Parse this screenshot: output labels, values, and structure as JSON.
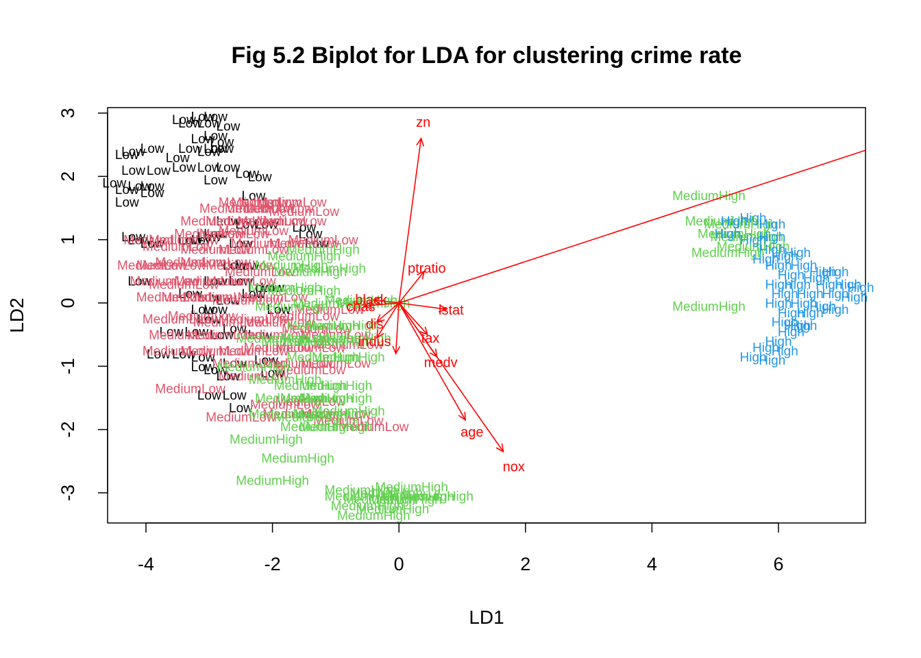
{
  "chart_data": {
    "type": "scatter",
    "title": "Fig 5.2 Biplot for LDA for clustering crime rate",
    "xlabel": "LD1",
    "ylabel": "LD2",
    "xlim": [
      -4.6,
      7.4
    ],
    "ylim": [
      -3.5,
      3.1
    ],
    "xticks": [
      -4,
      -2,
      0,
      2,
      4,
      6
    ],
    "yticks": [
      -3,
      -2,
      -1,
      0,
      1,
      2,
      3
    ],
    "grid": false,
    "legend": "none",
    "colors": {
      "Low": "#000000",
      "MediumLow": "#DF536B",
      "MediumHigh": "#61D04F",
      "High": "#2297E6",
      "arrows": "#FF0000"
    },
    "series": [
      {
        "name": "Low",
        "points": [
          [
            -3.4,
            2.9
          ],
          [
            -3.1,
            2.95
          ],
          [
            -2.9,
            2.95
          ],
          [
            -3.3,
            2.85
          ],
          [
            -3.0,
            2.85
          ],
          [
            -2.7,
            2.8
          ],
          [
            -3.1,
            2.6
          ],
          [
            -2.9,
            2.65
          ],
          [
            -2.8,
            2.55
          ],
          [
            -2.9,
            2.45
          ],
          [
            -3.3,
            2.45
          ],
          [
            -3.0,
            2.4
          ],
          [
            -2.8,
            2.45
          ],
          [
            -4.2,
            2.4
          ],
          [
            -3.9,
            2.45
          ],
          [
            -4.3,
            2.35
          ],
          [
            -3.5,
            2.3
          ],
          [
            -4.2,
            2.1
          ],
          [
            -3.8,
            2.1
          ],
          [
            -3.4,
            2.15
          ],
          [
            -3.0,
            2.15
          ],
          [
            -2.7,
            2.15
          ],
          [
            -2.4,
            2.05
          ],
          [
            -2.2,
            2.0
          ],
          [
            -2.9,
            1.95
          ],
          [
            -4.5,
            1.9
          ],
          [
            -4.1,
            1.85
          ],
          [
            -3.9,
            1.85
          ],
          [
            -4.3,
            1.8
          ],
          [
            -3.9,
            1.75
          ],
          [
            -2.3,
            1.7
          ],
          [
            -4.3,
            1.6
          ],
          [
            -2.7,
            1.3
          ],
          [
            -2.4,
            1.25
          ],
          [
            -2.1,
            1.25
          ],
          [
            -1.5,
            1.2
          ],
          [
            -1.4,
            1.1
          ],
          [
            -4.2,
            1.05
          ],
          [
            -4.1,
            1.0
          ],
          [
            -3.9,
            0.95
          ],
          [
            -3.3,
            1.0
          ],
          [
            -3.1,
            1.0
          ],
          [
            -3.0,
            1.05
          ],
          [
            -2.9,
            1.1
          ],
          [
            -2.5,
            0.95
          ],
          [
            -1.3,
            0.95
          ],
          [
            -2.6,
            0.6
          ],
          [
            -2.4,
            0.6
          ],
          [
            -4.1,
            0.35
          ],
          [
            -2.9,
            0.35
          ],
          [
            -2.5,
            0.35
          ],
          [
            -2.2,
            0.25
          ],
          [
            -2.0,
            0.25
          ],
          [
            -2.3,
            0.15
          ],
          [
            -3.3,
            0.15
          ],
          [
            -3.0,
            0.1
          ],
          [
            -2.7,
            0.05
          ],
          [
            -2.9,
            -0.1
          ],
          [
            -3.1,
            -0.1
          ],
          [
            -1.9,
            -0.1
          ],
          [
            -3.0,
            -0.25
          ],
          [
            -3.6,
            -0.45
          ],
          [
            -3.2,
            -0.45
          ],
          [
            -2.8,
            -0.5
          ],
          [
            -2.6,
            -0.4
          ],
          [
            -2.2,
            -0.5
          ],
          [
            -3.4,
            -0.8
          ],
          [
            -3.1,
            -0.85
          ],
          [
            -3.8,
            -0.8
          ],
          [
            -2.6,
            -0.95
          ],
          [
            -2.1,
            -0.9
          ],
          [
            -3.1,
            -1.0
          ],
          [
            -2.9,
            -1.05
          ],
          [
            -2.7,
            -1.15
          ],
          [
            -2.0,
            -1.1
          ],
          [
            -3.0,
            -1.45
          ],
          [
            -2.6,
            -1.45
          ],
          [
            -2.5,
            -1.65
          ]
        ]
      },
      {
        "name": "MediumLow",
        "points": [
          [
            -2.3,
            1.6
          ],
          [
            -2.1,
            1.6
          ],
          [
            -1.7,
            1.6
          ],
          [
            -2.6,
            1.5
          ],
          [
            -2.2,
            1.5
          ],
          [
            -1.9,
            1.5
          ],
          [
            -1.5,
            1.45
          ],
          [
            -2.9,
            1.3
          ],
          [
            -2.5,
            1.3
          ],
          [
            -2.0,
            1.3
          ],
          [
            -1.7,
            1.3
          ],
          [
            -3.0,
            1.1
          ],
          [
            -2.6,
            1.1
          ],
          [
            -2.3,
            1.15
          ],
          [
            -3.8,
            1.0
          ],
          [
            -3.4,
            1.0
          ],
          [
            -2.1,
            0.95
          ],
          [
            -1.5,
            0.95
          ],
          [
            -1.2,
            1.0
          ],
          [
            -3.5,
            0.9
          ],
          [
            -2.9,
            0.85
          ],
          [
            -2.3,
            0.85
          ],
          [
            -3.9,
            0.6
          ],
          [
            -3.6,
            0.6
          ],
          [
            -3.3,
            0.65
          ],
          [
            -2.9,
            0.65
          ],
          [
            -2.5,
            0.6
          ],
          [
            -2.2,
            0.5
          ],
          [
            -3.7,
            0.35
          ],
          [
            -3.4,
            0.3
          ],
          [
            -3.0,
            0.35
          ],
          [
            -2.5,
            0.35
          ],
          [
            -3.6,
            0.1
          ],
          [
            -3.2,
            0.1
          ],
          [
            -2.8,
            0.1
          ],
          [
            -2.4,
            0.05
          ],
          [
            -2.0,
            0.1
          ],
          [
            -3.5,
            -0.25
          ],
          [
            -3.1,
            -0.2
          ],
          [
            -2.7,
            -0.3
          ],
          [
            -2.3,
            -0.25
          ],
          [
            -1.9,
            -0.3
          ],
          [
            -1.5,
            -0.2
          ],
          [
            -1.1,
            -0.1
          ],
          [
            -3.4,
            -0.5
          ],
          [
            -2.8,
            -0.5
          ],
          [
            -2.0,
            -0.5
          ],
          [
            -1.3,
            -0.4
          ],
          [
            -1.0,
            -0.5
          ],
          [
            -3.5,
            -0.75
          ],
          [
            -2.9,
            -0.75
          ],
          [
            -2.3,
            -0.75
          ],
          [
            -1.9,
            -0.7
          ],
          [
            -1.4,
            -0.7
          ],
          [
            -0.8,
            -0.65
          ],
          [
            -2.4,
            -0.95
          ],
          [
            -1.6,
            -0.95
          ],
          [
            -1.0,
            -0.95
          ],
          [
            -2.3,
            -1.15
          ],
          [
            -1.4,
            -1.05
          ],
          [
            -3.3,
            -1.35
          ],
          [
            -1.8,
            -1.6
          ],
          [
            -1.4,
            -1.55
          ],
          [
            -2.5,
            -1.8
          ],
          [
            -1.6,
            -1.75
          ],
          [
            -1.0,
            -1.75
          ],
          [
            -0.8,
            -1.85
          ],
          [
            -0.4,
            -1.95
          ]
        ]
      },
      {
        "name": "MediumHigh",
        "points": [
          [
            -1.5,
            0.75
          ],
          [
            -1.2,
            0.85
          ],
          [
            -1.1,
            0.55
          ],
          [
            -1.4,
            0.5
          ],
          [
            -1.7,
            0.6
          ],
          [
            -1.8,
            0.25
          ],
          [
            -1.5,
            0.2
          ],
          [
            -1.1,
            0.0
          ],
          [
            -0.6,
            0.05
          ],
          [
            -0.4,
            0.0
          ],
          [
            -1.7,
            -0.05
          ],
          [
            -1.2,
            -0.35
          ],
          [
            -0.9,
            -0.35
          ],
          [
            -1.3,
            -0.55
          ],
          [
            -1.0,
            -0.6
          ],
          [
            -0.7,
            -0.55
          ],
          [
            -2.0,
            -0.55
          ],
          [
            -1.6,
            -0.6
          ],
          [
            -0.8,
            -0.85
          ],
          [
            -1.2,
            -0.85
          ],
          [
            -2.3,
            -1.0
          ],
          [
            -1.8,
            -1.2
          ],
          [
            -1.4,
            -1.3
          ],
          [
            -1.0,
            -1.3
          ],
          [
            -1.7,
            -1.5
          ],
          [
            -1.3,
            -1.5
          ],
          [
            -1.0,
            -1.5
          ],
          [
            -1.8,
            -1.75
          ],
          [
            -1.4,
            -1.8
          ],
          [
            -1.1,
            -1.75
          ],
          [
            -0.8,
            -1.7
          ],
          [
            -1.3,
            -1.95
          ],
          [
            -1.0,
            -1.95
          ],
          [
            -2.1,
            -2.15
          ],
          [
            -1.6,
            -2.45
          ],
          [
            -2.0,
            -2.8
          ],
          [
            -0.5,
            -3.2
          ],
          [
            -0.3,
            -3.1
          ],
          [
            -0.6,
            -3.05
          ],
          [
            -0.2,
            -3.0
          ],
          [
            0.1,
            -3.1
          ],
          [
            -0.4,
            -3.35
          ],
          [
            -0.1,
            -3.25
          ],
          [
            0.3,
            -3.05
          ],
          [
            0.6,
            -3.05
          ],
          [
            -0.6,
            -2.95
          ],
          [
            0.2,
            -2.9
          ],
          [
            4.9,
            1.7
          ],
          [
            5.1,
            1.3
          ],
          [
            5.4,
            1.25
          ],
          [
            5.3,
            1.1
          ],
          [
            5.6,
            0.9
          ],
          [
            5.2,
            0.8
          ],
          [
            5.5,
            1.05
          ],
          [
            4.9,
            -0.05
          ]
        ]
      },
      {
        "name": "High",
        "points": [
          [
            5.3,
            1.3
          ],
          [
            5.6,
            1.35
          ],
          [
            5.9,
            1.25
          ],
          [
            5.9,
            1.05
          ],
          [
            5.2,
            1.1
          ],
          [
            5.6,
            1.0
          ],
          [
            5.9,
            0.85
          ],
          [
            5.8,
            0.7
          ],
          [
            6.1,
            0.75
          ],
          [
            6.3,
            0.8
          ],
          [
            6.0,
            0.6
          ],
          [
            6.4,
            0.6
          ],
          [
            6.7,
            0.5
          ],
          [
            6.9,
            0.5
          ],
          [
            6.2,
            0.45
          ],
          [
            6.6,
            0.4
          ],
          [
            6.3,
            0.3
          ],
          [
            6.0,
            0.3
          ],
          [
            6.8,
            0.3
          ],
          [
            7.1,
            0.3
          ],
          [
            7.3,
            0.25
          ],
          [
            6.1,
            0.15
          ],
          [
            6.5,
            0.15
          ],
          [
            6.9,
            0.15
          ],
          [
            7.2,
            0.1
          ],
          [
            6.0,
            0.0
          ],
          [
            6.4,
            0.0
          ],
          [
            6.7,
            -0.05
          ],
          [
            6.2,
            -0.15
          ],
          [
            6.5,
            -0.15
          ],
          [
            6.9,
            -0.1
          ],
          [
            6.1,
            -0.3
          ],
          [
            6.4,
            -0.35
          ],
          [
            6.2,
            -0.45
          ],
          [
            6.0,
            -0.6
          ],
          [
            5.8,
            -0.7
          ],
          [
            6.1,
            -0.75
          ],
          [
            5.6,
            -0.85
          ],
          [
            5.9,
            -0.9
          ],
          [
            6.3,
            -0.35
          ]
        ]
      }
    ],
    "arrows": [
      {
        "label": "zn",
        "x": 0.35,
        "y": 2.6
      },
      {
        "label": "ptratio",
        "x": 0.4,
        "y": 0.5
      },
      {
        "label": "black",
        "x": -0.4,
        "y": 0.05
      },
      {
        "label": "lstat",
        "x": 0.75,
        "y": -0.1
      },
      {
        "label": "chas",
        "x": -0.55,
        "y": -0.05
      },
      {
        "label": "dis",
        "x": -0.35,
        "y": -0.3
      },
      {
        "label": "tax",
        "x": 0.45,
        "y": -0.5
      },
      {
        "label": "indus",
        "x": -0.35,
        "y": -0.55
      },
      {
        "label": "medv",
        "x": 0.6,
        "y": -0.85
      },
      {
        "label": "age",
        "x": 1.05,
        "y": -1.85
      },
      {
        "label": "nox",
        "x": 1.65,
        "y": -2.35
      },
      {
        "label": "",
        "x": 7.4,
        "y": 2.42
      },
      {
        "label": "",
        "x": -0.05,
        "y": -0.8
      }
    ]
  }
}
